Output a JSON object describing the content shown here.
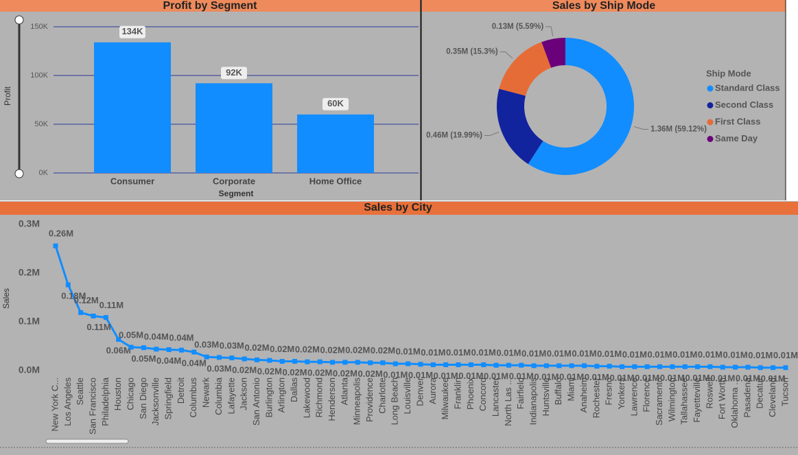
{
  "chart_data": [
    {
      "type": "bar",
      "title": "Profit by Segment",
      "x_label": "Segment",
      "y_label": "Profit",
      "categories": [
        "Consumer",
        "Corporate",
        "Home Office"
      ],
      "values": [
        134000,
        92000,
        60000
      ],
      "value_labels": [
        "134K",
        "92K",
        "60K"
      ],
      "color": "#118dff",
      "ylim": [
        0,
        150000
      ],
      "yticks": [
        {
          "value": 0,
          "label": "0K"
        },
        {
          "value": 50000,
          "label": "50K"
        },
        {
          "value": 100000,
          "label": "100K"
        },
        {
          "value": 150000,
          "label": "150K"
        }
      ],
      "grid": true
    },
    {
      "type": "donut",
      "title": "Sales by Ship Mode",
      "legend_title": "Ship Mode",
      "categories": [
        "Standard Class",
        "Second Class",
        "First Class",
        "Same Day"
      ],
      "values": [
        1360000,
        460000,
        350000,
        130000
      ],
      "value_labels": [
        "1.36M (59.12%)",
        "0.46M (19.99%)",
        "0.35M (15.3%)",
        "0.13M (5.59%)"
      ],
      "colors": [
        "#118dff",
        "#12239e",
        "#e66c37",
        "#6b007b"
      ],
      "legend": "right"
    },
    {
      "type": "line",
      "title": "Sales by City",
      "y_label": "Sales",
      "color": "#118dff",
      "categories": [
        "New York C...",
        "Los Angeles",
        "Seattle",
        "San Francisco",
        "Philadelphia",
        "Houston",
        "Chicago",
        "San Diego",
        "Jacksonville",
        "Springfield",
        "Detroit",
        "Columbus",
        "Newark",
        "Columbia",
        "Lafayette",
        "Jackson",
        "San Antonio",
        "Burlington",
        "Arlington",
        "Dallas",
        "Lakewood",
        "Richmond",
        "Henderson",
        "Atlanta",
        "Minneapolis",
        "Providence",
        "Charlotte",
        "Long Beach",
        "Louisville",
        "Denver",
        "Aurora",
        "Milwaukee",
        "Franklin",
        "Phoenix",
        "Concord",
        "Lancaster",
        "North Las ...",
        "Fairfield",
        "Indianapolis",
        "Huntsville",
        "Buffalo",
        "Miami",
        "Anaheim",
        "Rochester",
        "Fresno",
        "Yonkers",
        "Lawrence",
        "Florence",
        "Sacramento",
        "Wilmington",
        "Tallahassee",
        "Fayetteville",
        "Roswell",
        "Fort Worth",
        "Oklahoma ...",
        "Pasadena",
        "Decatur",
        "Cleveland",
        "Tucson"
      ],
      "values": [
        256000,
        176000,
        119000,
        112000,
        109000,
        64000,
        48000,
        47000,
        44000,
        43000,
        42000,
        38000,
        28000,
        27000,
        26000,
        24000,
        22000,
        21000,
        19000,
        19000,
        18000,
        18000,
        17000,
        17000,
        17000,
        16000,
        16000,
        14000,
        14000,
        13000,
        12000,
        12000,
        12000,
        12000,
        12000,
        11000,
        11000,
        11000,
        10000,
        10000,
        10000,
        10000,
        10000,
        9000,
        9000,
        8000,
        8000,
        8000,
        8000,
        8000,
        8000,
        8000,
        8000,
        7000,
        7000,
        7000,
        6000,
        6000,
        6000
      ],
      "value_labels": [
        "0.26M",
        "0.18M",
        "0.12M",
        "0.11M",
        "0.11M",
        "0.06M",
        "0.05M",
        "0.05M",
        "0.04M",
        "0.04M",
        "0.04M",
        "0.04M",
        "0.03M",
        "0.03M",
        "0.03M",
        "0.02M",
        "0.02M",
        "0.02M",
        "0.02M",
        "0.02M",
        "0.02M",
        "0.02M",
        "0.02M",
        "0.02M",
        "0.02M",
        "0.02M",
        "0.02M",
        "0.01M",
        "0.01M",
        "0.01M",
        "0.01M",
        "0.01M",
        "0.01M",
        "0.01M",
        "0.01M",
        "0.01M",
        "0.01M",
        "0.01M",
        "0.01M",
        "0.01M",
        "0.01M",
        "0.01M",
        "0.01M",
        "0.01M",
        "0.01M",
        "0.01M",
        "0.01M",
        "0.01M",
        "0.01M",
        "0.01M",
        "0.01M",
        "0.01M",
        "0.01M",
        "0.01M",
        "0.01M",
        "0.01M",
        "0.01M",
        "0.01M",
        "0.01M"
      ],
      "ylim": [
        0,
        300000
      ],
      "yticks": [
        {
          "value": 0,
          "label": "0.0M"
        },
        {
          "value": 100000,
          "label": "0.1M"
        },
        {
          "value": 200000,
          "label": "0.2M"
        },
        {
          "value": 300000,
          "label": "0.3M"
        }
      ]
    }
  ]
}
